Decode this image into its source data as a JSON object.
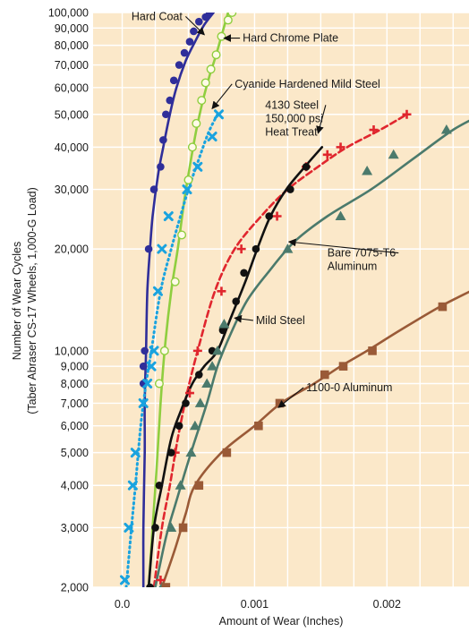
{
  "colors": {
    "plot_bg": "#fbe8c9",
    "grid": "#ffffff",
    "hard_coat": "#2f2e9a",
    "hard_chrome": "#8fce3f",
    "cyanide": "#1aa3df",
    "steel_4130": "#e0262e",
    "mild_steel": "#111111",
    "bare_7075": "#4b7a6c",
    "al_1100": "#9a5a37"
  },
  "chart_data": {
    "type": "line",
    "scale": {
      "x": "linear",
      "y": "log"
    },
    "xlim": [
      -0.00022,
      0.00262
    ],
    "ylim": [
      2000,
      100000
    ],
    "xlabel": "Amount of Wear (Inches)",
    "ylabel": "Number of Wear Cycles",
    "ylabel2": "(Taber Abraser CS-17 Wheels, 1,000-G Load)",
    "grid": true,
    "x_ticks": [
      {
        "v": 0.0,
        "label": "0.0"
      },
      {
        "v": 0.001,
        "label": "0.001"
      },
      {
        "v": 0.002,
        "label": "0.002"
      }
    ],
    "y_ticks": [
      {
        "v": 2000,
        "label": "2,000"
      },
      {
        "v": 3000,
        "label": "3,000"
      },
      {
        "v": 4000,
        "label": "4,000"
      },
      {
        "v": 5000,
        "label": "5,000"
      },
      {
        "v": 6000,
        "label": "6,000"
      },
      {
        "v": 7000,
        "label": "7,000"
      },
      {
        "v": 8000,
        "label": "8,000"
      },
      {
        "v": 9000,
        "label": "9,000"
      },
      {
        "v": 10000,
        "label": "10,000"
      },
      {
        "v": 20000,
        "label": "20,000"
      },
      {
        "v": 30000,
        "label": "30,000"
      },
      {
        "v": 40000,
        "label": "40,000"
      },
      {
        "v": 50000,
        "label": "50,000"
      },
      {
        "v": 60000,
        "label": "60,000"
      },
      {
        "v": 70000,
        "label": "70,000"
      },
      {
        "v": 80000,
        "label": "80,000"
      },
      {
        "v": 90000,
        "label": "90,000"
      },
      {
        "v": 100000,
        "label": "100,000"
      }
    ],
    "series": [
      {
        "name": "Hard Coat",
        "color_key": "hard_coat",
        "marker": "circle",
        "line": "solid",
        "curve": [
          [
            0.00016,
            2000
          ],
          [
            0.00016,
            3000
          ],
          [
            0.00017,
            5000
          ],
          [
            0.00017,
            7000
          ],
          [
            0.00018,
            10000
          ],
          [
            0.00019,
            15000
          ],
          [
            0.00021,
            20000
          ],
          [
            0.00023,
            25000
          ],
          [
            0.00027,
            33000
          ],
          [
            0.00031,
            40000
          ],
          [
            0.00036,
            50000
          ],
          [
            0.00041,
            60000
          ],
          [
            0.00048,
            72000
          ],
          [
            0.00055,
            82000
          ],
          [
            0.00062,
            92000
          ],
          [
            0.00069,
            100000
          ]
        ],
        "points": [
          [
            0.00016,
            8000
          ],
          [
            0.00016,
            9000
          ],
          [
            0.00017,
            10000
          ],
          [
            0.0002,
            20000
          ],
          [
            0.00024,
            30000
          ],
          [
            0.00029,
            35000
          ],
          [
            0.00031,
            42000
          ],
          [
            0.00033,
            50000
          ],
          [
            0.00036,
            55000
          ],
          [
            0.00039,
            63000
          ],
          [
            0.00043,
            70000
          ],
          [
            0.00047,
            76000
          ],
          [
            0.00051,
            82000
          ],
          [
            0.00054,
            88000
          ],
          [
            0.00058,
            94000
          ],
          [
            0.00063,
            97000
          ],
          [
            0.00066,
            100000
          ]
        ]
      },
      {
        "name": "Hard Chrome Plate",
        "color_key": "hard_chrome",
        "marker": "hollow-circle",
        "line": "solid",
        "curve": [
          [
            0.0002,
            2000
          ],
          [
            0.00023,
            3000
          ],
          [
            0.00026,
            4500
          ],
          [
            0.00029,
            7000
          ],
          [
            0.00032,
            10000
          ],
          [
            0.00037,
            15000
          ],
          [
            0.00042,
            20000
          ],
          [
            0.00047,
            28000
          ],
          [
            0.00051,
            35000
          ],
          [
            0.00056,
            45000
          ],
          [
            0.00061,
            55000
          ],
          [
            0.00066,
            65000
          ],
          [
            0.00071,
            75000
          ],
          [
            0.00076,
            88000
          ],
          [
            0.0008,
            100000
          ]
        ],
        "points": [
          [
            0.00028,
            8000
          ],
          [
            0.00032,
            10000
          ],
          [
            0.0004,
            16000
          ],
          [
            0.00045,
            22000
          ],
          [
            0.0005,
            32000
          ],
          [
            0.00053,
            40000
          ],
          [
            0.00056,
            47000
          ],
          [
            0.0006,
            55000
          ],
          [
            0.00063,
            62000
          ],
          [
            0.00067,
            68000
          ],
          [
            0.00071,
            75000
          ],
          [
            0.00075,
            85000
          ],
          [
            0.0008,
            95000
          ],
          [
            0.00083,
            100000
          ]
        ]
      },
      {
        "name": "Cyanide Hardened Mild Steel",
        "color_key": "cyanide",
        "marker": "x",
        "line": "dotted",
        "curve": [
          [
            3e-05,
            2000
          ],
          [
            7e-05,
            3000
          ],
          [
            0.0001,
            4000
          ],
          [
            0.00014,
            6000
          ],
          [
            0.00018,
            8000
          ],
          [
            0.00022,
            10000
          ],
          [
            0.00029,
            15000
          ],
          [
            0.00037,
            20000
          ],
          [
            0.00044,
            25000
          ],
          [
            0.0005,
            30000
          ],
          [
            0.00057,
            36000
          ],
          [
            0.00065,
            44000
          ],
          [
            0.00072,
            50000
          ]
        ],
        "points": [
          [
            2e-05,
            2100
          ],
          [
            5e-05,
            3000
          ],
          [
            8e-05,
            4000
          ],
          [
            0.0001,
            5000
          ],
          [
            0.00016,
            7000
          ],
          [
            0.00019,
            8000
          ],
          [
            0.00022,
            9000
          ],
          [
            0.00024,
            10000
          ],
          [
            0.00027,
            15000
          ],
          [
            0.0003,
            20000
          ],
          [
            0.00035,
            25000
          ],
          [
            0.00049,
            30000
          ],
          [
            0.00057,
            35000
          ],
          [
            0.00068,
            43000
          ],
          [
            0.00073,
            50000
          ]
        ]
      },
      {
        "name": "4130 Steel 150,000 psi Heat Treat",
        "color_key": "steel_4130",
        "marker": "plus",
        "line": "dashed",
        "curve": [
          [
            0.00024,
            2000
          ],
          [
            0.0003,
            3000
          ],
          [
            0.00036,
            4000
          ],
          [
            0.00042,
            5500
          ],
          [
            0.00049,
            7500
          ],
          [
            0.00057,
            10000
          ],
          [
            0.0007,
            15000
          ],
          [
            0.00085,
            20000
          ],
          [
            0.00105,
            25000
          ],
          [
            0.00125,
            30000
          ],
          [
            0.00148,
            35000
          ],
          [
            0.0017,
            40000
          ],
          [
            0.00195,
            45000
          ],
          [
            0.00215,
            50000
          ]
        ],
        "points": [
          [
            0.00029,
            2100
          ],
          [
            0.0004,
            5000
          ],
          [
            0.00051,
            7500
          ],
          [
            0.00057,
            10000
          ],
          [
            0.00075,
            15000
          ],
          [
            0.0009,
            20000
          ],
          [
            0.00117,
            25000
          ],
          [
            0.00139,
            35000
          ],
          [
            0.00155,
            38000
          ],
          [
            0.00165,
            40000
          ],
          [
            0.0019,
            45000
          ],
          [
            0.00215,
            50000
          ]
        ]
      },
      {
        "name": "Mild Steel",
        "color_key": "mild_steel",
        "marker": "circle",
        "line": "solid",
        "curve": [
          [
            0.0002,
            2000
          ],
          [
            0.00024,
            3000
          ],
          [
            0.0003,
            4000
          ],
          [
            0.00037,
            5500
          ],
          [
            0.00044,
            6600
          ],
          [
            0.00053,
            8000
          ],
          [
            0.00062,
            9000
          ],
          [
            0.00072,
            10000
          ],
          [
            0.00082,
            12500
          ],
          [
            0.00093,
            16000
          ],
          [
            0.00102,
            20000
          ],
          [
            0.00112,
            25000
          ],
          [
            0.00124,
            30000
          ],
          [
            0.00138,
            35000
          ],
          [
            0.00151,
            40000
          ]
        ],
        "points": [
          [
            0.00021,
            2000
          ],
          [
            0.00025,
            3000
          ],
          [
            0.00028,
            4000
          ],
          [
            0.00037,
            5000
          ],
          [
            0.00043,
            6000
          ],
          [
            0.00048,
            7000
          ],
          [
            0.00058,
            8500
          ],
          [
            0.00068,
            10000
          ],
          [
            0.00076,
            11500
          ],
          [
            0.00086,
            14000
          ],
          [
            0.00092,
            17000
          ],
          [
            0.00101,
            20000
          ],
          [
            0.00111,
            25000
          ],
          [
            0.00127,
            30000
          ],
          [
            0.00139,
            35000
          ]
        ]
      },
      {
        "name": "Bare 7075-T6 Aluminum",
        "color_key": "bare_7075",
        "marker": "triangle",
        "line": "solid",
        "curve": [
          [
            0.00025,
            2000
          ],
          [
            0.00033,
            2800
          ],
          [
            0.0004,
            3500
          ],
          [
            0.00052,
            5000
          ],
          [
            0.00064,
            7000
          ],
          [
            0.00072,
            9000
          ],
          [
            0.00081,
            11000
          ],
          [
            0.00094,
            14000
          ],
          [
            0.0011,
            17000
          ],
          [
            0.0013,
            21000
          ],
          [
            0.00155,
            25000
          ],
          [
            0.00188,
            30000
          ],
          [
            0.0022,
            37000
          ],
          [
            0.0025,
            45000
          ],
          [
            0.00272,
            50000
          ]
        ],
        "points": [
          [
            0.0003,
            2000
          ],
          [
            0.00037,
            3000
          ],
          [
            0.00044,
            4000
          ],
          [
            0.00052,
            5000
          ],
          [
            0.00055,
            6000
          ],
          [
            0.00059,
            7000
          ],
          [
            0.00064,
            8000
          ],
          [
            0.00068,
            9000
          ],
          [
            0.00072,
            10000
          ],
          [
            0.00077,
            12000
          ],
          [
            0.00125,
            20000
          ],
          [
            0.00165,
            25000
          ],
          [
            0.00185,
            34000
          ],
          [
            0.00205,
            38000
          ],
          [
            0.00245,
            45000
          ],
          [
            0.0027,
            50000
          ]
        ]
      },
      {
        "name": "1100-0 Aluminum",
        "color_key": "al_1100",
        "marker": "square",
        "line": "solid",
        "curve": [
          [
            0.0003,
            2000
          ],
          [
            0.0004,
            2600
          ],
          [
            0.00048,
            3300
          ],
          [
            0.00055,
            4000
          ],
          [
            0.00075,
            5000
          ],
          [
            0.001,
            6000
          ],
          [
            0.0012,
            7000
          ],
          [
            0.00145,
            8000
          ],
          [
            0.00165,
            9000
          ],
          [
            0.00185,
            10000
          ],
          [
            0.0021,
            11500
          ],
          [
            0.0024,
            13500
          ],
          [
            0.0027,
            15500
          ],
          [
            0.003,
            18000
          ]
        ],
        "points": [
          [
            0.00033,
            2000
          ],
          [
            0.00046,
            3000
          ],
          [
            0.00058,
            4000
          ],
          [
            0.00079,
            5000
          ],
          [
            0.00103,
            6000
          ],
          [
            0.00119,
            7000
          ],
          [
            0.00153,
            8500
          ],
          [
            0.00167,
            9000
          ],
          [
            0.00189,
            10000
          ],
          [
            0.00242,
            13500
          ],
          [
            0.00271,
            16500
          ]
        ]
      }
    ],
    "annotations": [
      {
        "lines": [
          "Hard Coat"
        ],
        "x": 7e-05,
        "y": 95000,
        "arrow_to": [
          0.00062,
          86000
        ]
      },
      {
        "lines": [
          "Hard Chrome Plate"
        ],
        "x": 0.00091,
        "y": 82000,
        "arrow_to": [
          0.00077,
          84000
        ]
      },
      {
        "lines": [
          "Cyanide Hardened Mild Steel"
        ],
        "x": 0.00085,
        "y": 60000,
        "arrow_to": [
          0.00068,
          52000
        ]
      },
      {
        "lines": [
          "4130 Steel",
          "150,000 psi",
          "Heat Treat"
        ],
        "x": 0.00108,
        "y": 52000,
        "arrow_to": [
          0.00148,
          44000
        ]
      },
      {
        "lines": [
          "Bare 7075-T6",
          "Aluminum"
        ],
        "x": 0.00155,
        "y": 19000,
        "arrow_to": [
          0.00126,
          21000
        ]
      },
      {
        "lines": [
          "Mild Steel"
        ],
        "x": 0.00101,
        "y": 12000,
        "arrow_to": [
          0.00085,
          12500
        ]
      },
      {
        "lines": [
          "1100-0 Aluminum"
        ],
        "x": 0.00139,
        "y": 7600,
        "arrow_to": [
          0.00118,
          6800
        ]
      }
    ]
  }
}
